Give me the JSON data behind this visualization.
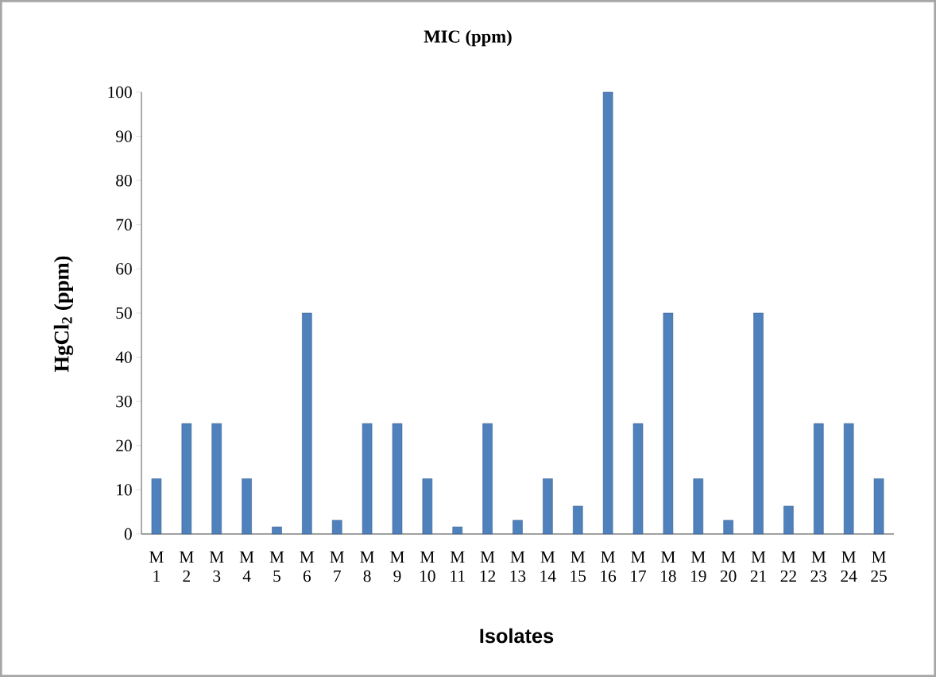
{
  "chart_data": {
    "type": "bar",
    "title": "MIC (ppm)",
    "xlabel": "Isolates",
    "ylabel": "HgCl$_{2}$ (ppm)",
    "categories": [
      "M 1",
      "M 2",
      "M 3",
      "M 4",
      "M 5",
      "M 6",
      "M 7",
      "M 8",
      "M 9",
      "M 10",
      "M 11",
      "M 12",
      "M 13",
      "M 14",
      "M 15",
      "M 16",
      "M 17",
      "M 18",
      "M 19",
      "M 20",
      "M 21",
      "M 22",
      "M 23",
      "M 24",
      "M 25"
    ],
    "values": [
      12.5,
      25,
      25,
      12.5,
      1.6,
      50,
      3.1,
      25,
      25,
      12.5,
      1.6,
      25,
      3.1,
      12.5,
      6.3,
      100,
      25,
      50,
      12.5,
      3.1,
      50,
      6.3,
      25,
      25,
      12.5
    ],
    "color": "#4f81bd",
    "ylim": [
      0,
      100
    ],
    "yticks": [
      0,
      10,
      20,
      30,
      40,
      50,
      60,
      70,
      80,
      90,
      100
    ]
  }
}
